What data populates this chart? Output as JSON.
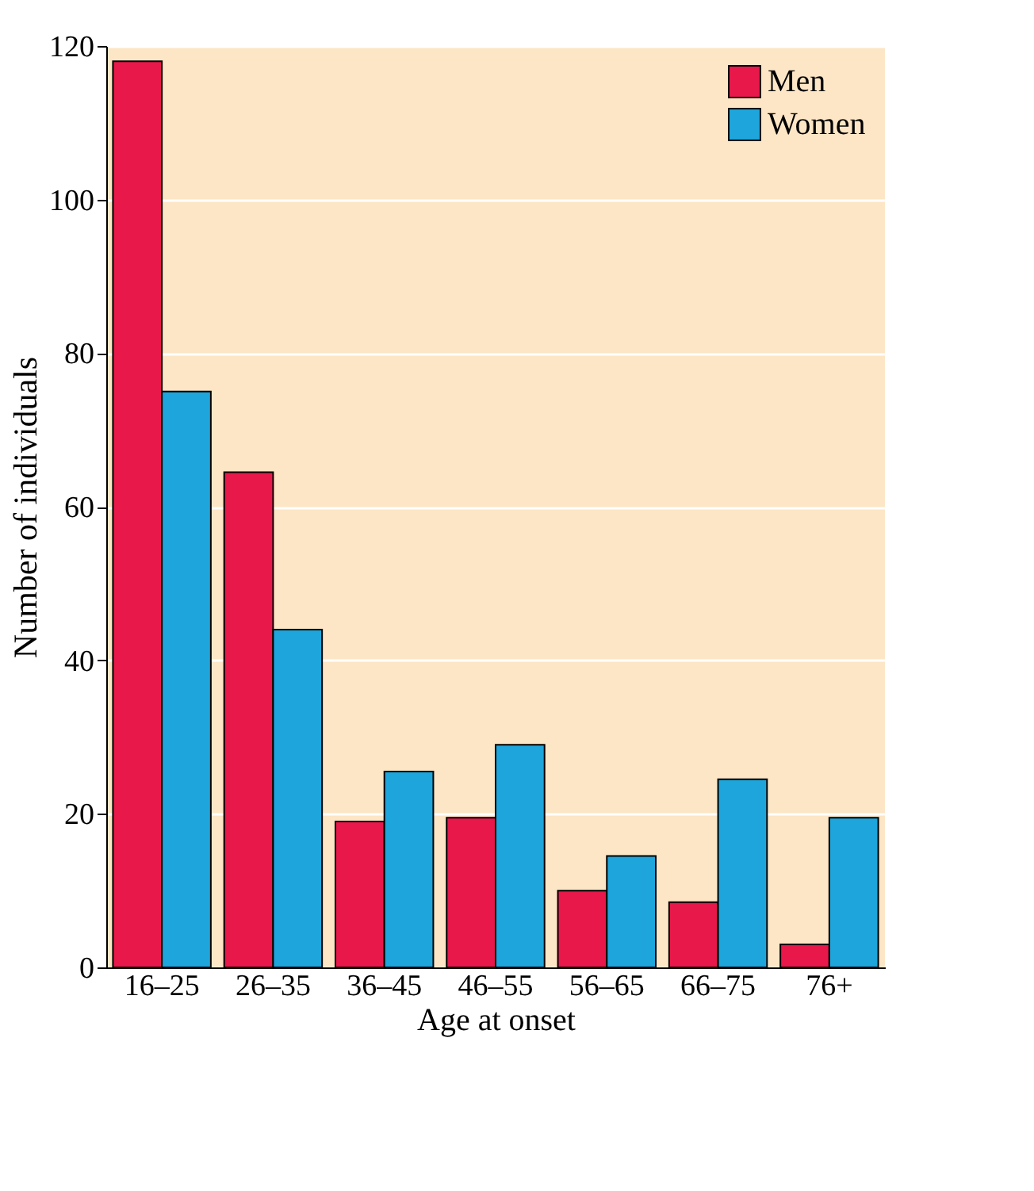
{
  "chart_data": {
    "type": "bar",
    "xlabel": "Age at onset",
    "ylabel": "Number of individuals",
    "categories": [
      "16–25",
      "26–35",
      "36–45",
      "46–55",
      "56–65",
      "66–75",
      "76+"
    ],
    "series": [
      {
        "name": "Men",
        "color": "#e8184a",
        "values": [
          118,
          64.5,
          19,
          19.5,
          10,
          8.5,
          3
        ]
      },
      {
        "name": "Women",
        "color": "#1ea5db",
        "values": [
          75,
          44,
          25.5,
          29,
          14.5,
          24.5,
          19.5
        ]
      }
    ],
    "ylim": [
      0,
      120
    ],
    "yticks": [
      0,
      20,
      40,
      60,
      80,
      100,
      120
    ],
    "grid": "y",
    "legend": "top right"
  }
}
